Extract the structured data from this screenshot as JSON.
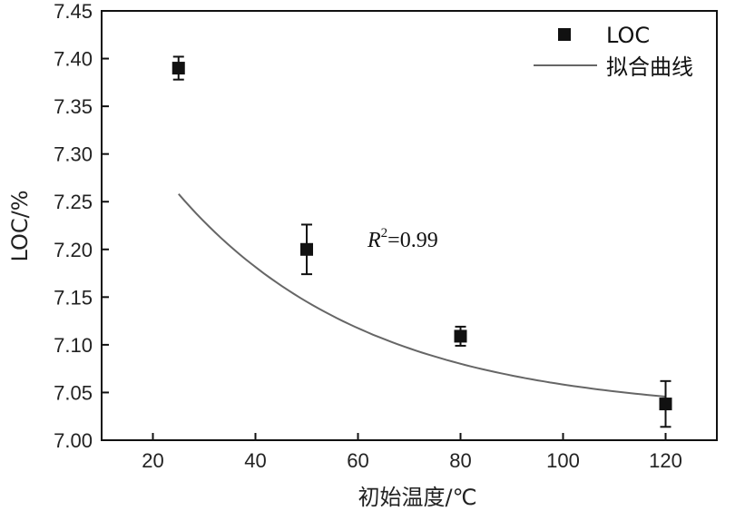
{
  "chart_data": {
    "type": "scatter",
    "xlabel": "初始温度/℃",
    "ylabel": "LOC/%",
    "xlim": [
      10,
      130
    ],
    "ylim": [
      7.0,
      7.45
    ],
    "xticks": [
      20,
      40,
      60,
      80,
      100,
      120
    ],
    "yticks": [
      7.0,
      7.05,
      7.1,
      7.15,
      7.2,
      7.25,
      7.3,
      7.35,
      7.4,
      7.45
    ],
    "xtick_labels": [
      "20",
      "40",
      "60",
      "80",
      "100",
      "120"
    ],
    "ytick_labels": [
      "7.00",
      "7.05",
      "7.10",
      "7.15",
      "7.20",
      "7.25",
      "7.30",
      "7.35",
      "7.40",
      "7.45"
    ],
    "grid": false,
    "legend_position": "top-right",
    "series": [
      {
        "name": "LOC",
        "type": "scatter",
        "marker": "square",
        "color": "#111111",
        "x": [
          25,
          50,
          80,
          120
        ],
        "y": [
          7.39,
          7.2,
          7.109,
          7.038
        ],
        "error": [
          0.012,
          0.026,
          0.01,
          0.024
        ]
      },
      {
        "name": "拟合曲线",
        "type": "line",
        "color": "#666666",
        "fit": {
          "form": "exponential",
          "a": 0.452,
          "b": -0.027,
          "c": 7.028
        },
        "x_range": [
          25,
          120
        ]
      }
    ],
    "annotation": {
      "base": "R",
      "superscript": "2",
      "rest": "=0.99"
    }
  }
}
